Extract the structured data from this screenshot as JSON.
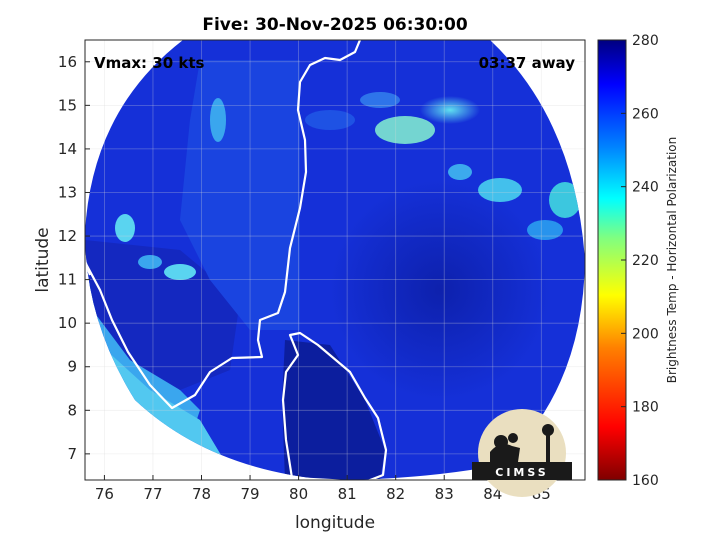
{
  "title": "Five: 30-Nov-2025 06:30:00",
  "annotations": {
    "vmax": "Vmax: 30 kts",
    "time_away": "03:37 away"
  },
  "axes": {
    "xlabel": "longitude",
    "ylabel": "latitude",
    "xlim": [
      75.6,
      85.9
    ],
    "ylim": [
      6.4,
      16.5
    ],
    "xticks": [
      "76",
      "77",
      "78",
      "79",
      "80",
      "81",
      "82",
      "83",
      "84",
      "85"
    ],
    "yticks": [
      "7",
      "8",
      "9",
      "10",
      "11",
      "12",
      "13",
      "14",
      "15",
      "16"
    ],
    "grid": true
  },
  "colorbar": {
    "label": "Brightness Temp - Horizontal Polarization",
    "ticks": [
      "280",
      "260",
      "240",
      "220",
      "200",
      "180",
      "160"
    ],
    "range": [
      160,
      280
    ],
    "colormap": [
      "#7f0000",
      "#ff0000",
      "#ff8000",
      "#ffff00",
      "#80ff80",
      "#00ffff",
      "#0080ff",
      "#0000ff",
      "#000080"
    ]
  },
  "logo_text": "CIMSS",
  "colors": {
    "background_field": "#1428d4",
    "dark_field": "#0a1896",
    "land_bright": "#1c6bea",
    "cyan": "#30c8f0",
    "coast": "#ffffff"
  }
}
